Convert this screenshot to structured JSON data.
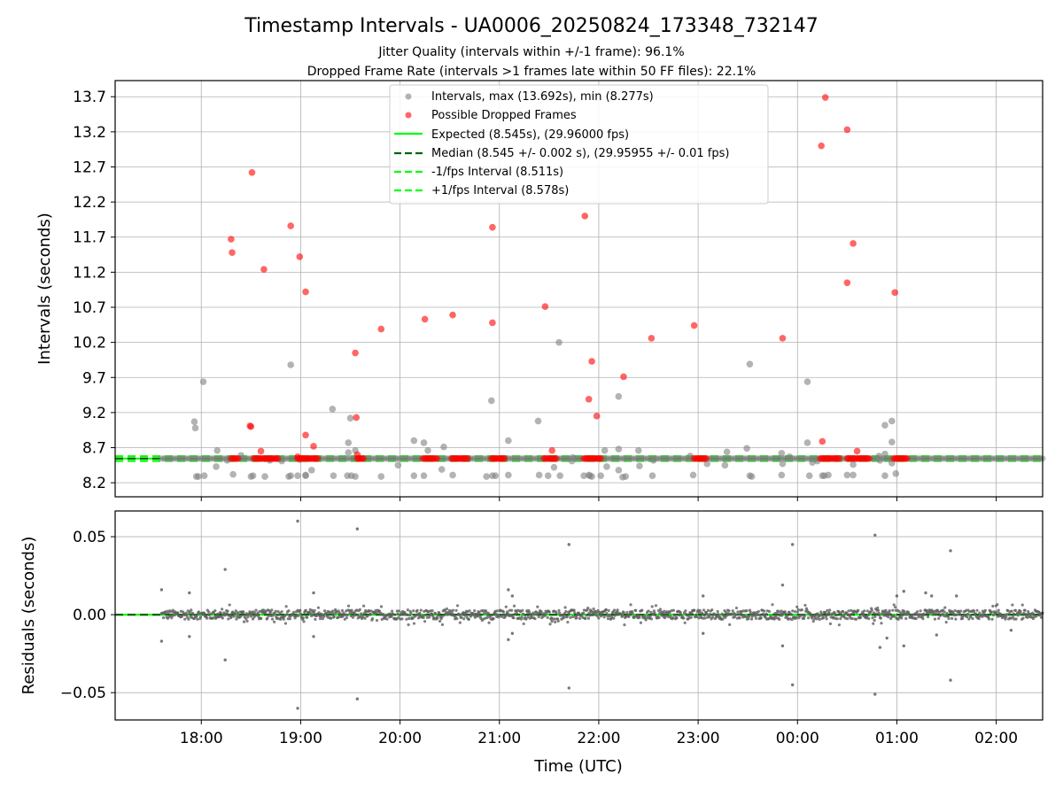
{
  "chart_data": [
    {
      "type": "scatter",
      "title": "Timestamp Intervals - UA0006_20250824_173348_732147",
      "subtitle_lines": [
        "Jitter Quality (intervals within +/-1 frame): 96.1%",
        "Dropped Frame Rate (intervals >1 frames late within 50 FF files): 22.1%"
      ],
      "xlabel": "",
      "ylabel": "Intervals (seconds)",
      "x_unit": "hours since 00:00 UTC (2025-08-24); values > 24 are after midnight",
      "xlim": [
        17.133,
        26.467
      ],
      "ylim": [
        8.0,
        13.93
      ],
      "y_ticks": [
        8.2,
        8.7,
        9.2,
        9.7,
        10.2,
        10.7,
        11.2,
        11.7,
        12.2,
        12.7,
        13.2,
        13.7
      ],
      "y_tick_labels": [
        "8.2",
        "8.7",
        "9.2",
        "9.7",
        "10.2",
        "10.7",
        "11.2",
        "11.7",
        "12.2",
        "12.7",
        "13.2",
        "13.7"
      ],
      "grid": true,
      "legend_position": "top-center",
      "legend": [
        "Intervals, max (13.692s), min (8.277s)",
        "Possible Dropped Frames",
        "Expected (8.545s), (29.96000 fps)",
        "Median (8.545 +/- 0.002 s), (29.95955 +/- 0.01 fps)",
        "-1/fps Interval (8.511s)",
        "+1/fps Interval (8.578s)"
      ],
      "lines": [
        {
          "name": "Expected",
          "y": 8.545,
          "color": "#00ff00",
          "style": "solid"
        },
        {
          "name": "Median",
          "y": 8.545,
          "color": "#006400",
          "style": "dashed"
        },
        {
          "name": "-1/fps Interval",
          "y": 8.511,
          "color": "#00ff00",
          "style": "dashed"
        },
        {
          "name": "+1/fps Interval",
          "y": 8.578,
          "color": "#00ff00",
          "style": "dashed"
        }
      ],
      "series": [
        {
          "name": "Intervals",
          "color": "#808080",
          "points": [
            [
              17.93,
              9.07
            ],
            [
              17.94,
              8.98
            ],
            [
              17.95,
              8.29
            ],
            [
              17.97,
              8.29
            ],
            [
              18.02,
              9.64
            ],
            [
              18.03,
              8.3
            ],
            [
              18.15,
              8.43
            ],
            [
              18.16,
              8.66
            ],
            [
              18.26,
              8.52
            ],
            [
              18.32,
              8.32
            ],
            [
              18.4,
              8.59
            ],
            [
              18.5,
              8.29
            ],
            [
              18.52,
              8.3
            ],
            [
              18.64,
              8.29
            ],
            [
              18.69,
              8.52
            ],
            [
              18.81,
              8.51
            ],
            [
              18.88,
              8.29
            ],
            [
              18.9,
              9.88
            ],
            [
              18.9,
              8.3
            ],
            [
              18.97,
              8.3
            ],
            [
              18.99,
              8.53
            ],
            [
              19.05,
              8.3
            ],
            [
              19.05,
              8.31
            ],
            [
              19.11,
              8.38
            ],
            [
              19.32,
              9.25
            ],
            [
              19.33,
              8.3
            ],
            [
              19.47,
              8.3
            ],
            [
              19.48,
              8.77
            ],
            [
              19.48,
              8.63
            ],
            [
              19.5,
              9.12
            ],
            [
              19.51,
              8.3
            ],
            [
              19.55,
              8.66
            ],
            [
              19.55,
              8.29
            ],
            [
              19.81,
              8.29
            ],
            [
              19.98,
              8.45
            ],
            [
              20.14,
              8.8
            ],
            [
              20.14,
              8.3
            ],
            [
              20.24,
              8.77
            ],
            [
              20.24,
              8.3
            ],
            [
              20.28,
              8.66
            ],
            [
              20.42,
              8.39
            ],
            [
              20.44,
              8.71
            ],
            [
              20.53,
              8.31
            ],
            [
              20.87,
              8.29
            ],
            [
              20.92,
              9.37
            ],
            [
              20.93,
              8.3
            ],
            [
              20.96,
              8.3
            ],
            [
              21.09,
              8.8
            ],
            [
              21.09,
              8.31
            ],
            [
              21.39,
              9.08
            ],
            [
              21.4,
              8.31
            ],
            [
              21.49,
              8.3
            ],
            [
              21.55,
              8.42
            ],
            [
              21.6,
              10.2
            ],
            [
              21.61,
              8.3
            ],
            [
              21.73,
              8.51
            ],
            [
              21.74,
              8.56
            ],
            [
              21.85,
              8.3
            ],
            [
              21.9,
              8.31
            ],
            [
              21.91,
              8.3
            ],
            [
              21.93,
              8.29
            ],
            [
              22.02,
              8.3
            ],
            [
              22.06,
              8.66
            ],
            [
              22.08,
              8.43
            ],
            [
              22.2,
              8.68
            ],
            [
              22.2,
              9.43
            ],
            [
              22.2,
              8.38
            ],
            [
              22.24,
              8.28
            ],
            [
              22.27,
              8.29
            ],
            [
              22.4,
              8.66
            ],
            [
              22.41,
              8.44
            ],
            [
              22.54,
              8.3
            ],
            [
              22.92,
              8.58
            ],
            [
              22.95,
              8.31
            ],
            [
              23.09,
              8.47
            ],
            [
              23.27,
              8.45
            ],
            [
              23.29,
              8.64
            ],
            [
              23.49,
              8.69
            ],
            [
              23.52,
              8.3
            ],
            [
              23.52,
              9.89
            ],
            [
              23.54,
              8.29
            ],
            [
              23.84,
              8.62
            ],
            [
              23.84,
              8.31
            ],
            [
              23.85,
              8.47
            ],
            [
              23.92,
              8.57
            ],
            [
              24.1,
              9.64
            ],
            [
              24.1,
              8.77
            ],
            [
              24.12,
              8.3
            ],
            [
              24.15,
              8.49
            ],
            [
              24.25,
              8.3
            ],
            [
              24.27,
              8.3
            ],
            [
              24.31,
              8.31
            ],
            [
              24.5,
              8.31
            ],
            [
              24.56,
              8.31
            ],
            [
              24.56,
              8.46
            ],
            [
              24.82,
              8.58
            ],
            [
              24.83,
              8.52
            ],
            [
              24.88,
              8.61
            ],
            [
              24.88,
              9.02
            ],
            [
              24.88,
              8.3
            ],
            [
              24.95,
              8.48
            ],
            [
              24.95,
              8.78
            ],
            [
              24.95,
              9.08
            ],
            [
              24.99,
              8.33
            ],
            [
              24.2,
              8.51
            ],
            [
              22.55,
              8.52
            ]
          ]
        },
        {
          "name": "Possible Dropped Frames",
          "color": "#ff0000",
          "points": [
            [
              18.3,
              11.67
            ],
            [
              18.31,
              11.48
            ],
            [
              18.49,
              9.01
            ],
            [
              18.5,
              9.0
            ],
            [
              18.51,
              12.62
            ],
            [
              18.6,
              8.65
            ],
            [
              18.63,
              11.24
            ],
            [
              18.9,
              11.86
            ],
            [
              18.97,
              8.57
            ],
            [
              18.99,
              11.42
            ],
            [
              19.05,
              10.92
            ],
            [
              19.05,
              8.88
            ],
            [
              19.13,
              8.72
            ],
            [
              19.55,
              10.05
            ],
            [
              19.56,
              9.13
            ],
            [
              19.57,
              8.6
            ],
            [
              19.81,
              10.39
            ],
            [
              20.25,
              10.53
            ],
            [
              20.53,
              10.59
            ],
            [
              20.93,
              11.84
            ],
            [
              20.93,
              10.48
            ],
            [
              21.46,
              10.71
            ],
            [
              21.53,
              8.66
            ],
            [
              21.86,
              12.0
            ],
            [
              21.9,
              9.39
            ],
            [
              21.93,
              9.93
            ],
            [
              21.98,
              9.15
            ],
            [
              22.25,
              9.71
            ],
            [
              22.53,
              10.26
            ],
            [
              22.96,
              10.44
            ],
            [
              23.85,
              10.26
            ],
            [
              24.24,
              13.0
            ],
            [
              24.25,
              8.79
            ],
            [
              24.28,
              13.69
            ],
            [
              24.5,
              13.23
            ],
            [
              24.5,
              11.05
            ],
            [
              24.56,
              11.61
            ],
            [
              24.6,
              8.65
            ],
            [
              24.98,
              10.91
            ]
          ],
          "clusters_at_8_545": [
            [
              18.3,
              18.37
            ],
            [
              18.53,
              18.77
            ],
            [
              18.97,
              19.17
            ],
            [
              19.57,
              19.63
            ],
            [
              20.23,
              20.37
            ],
            [
              20.52,
              20.68
            ],
            [
              20.92,
              21.05
            ],
            [
              21.45,
              21.57
            ],
            [
              21.85,
              22.02
            ],
            [
              22.96,
              23.08
            ],
            [
              24.23,
              24.42
            ],
            [
              24.5,
              24.72
            ],
            [
              24.97,
              25.1
            ]
          ]
        }
      ]
    },
    {
      "type": "scatter",
      "title": "",
      "xlabel": "Time (UTC)",
      "ylabel": "Residuals (seconds)",
      "xlim": [
        17.133,
        26.467
      ],
      "ylim": [
        -0.0675,
        0.0665
      ],
      "y_ticks": [
        0.05,
        0.0,
        -0.05
      ],
      "y_tick_labels": [
        "0.05",
        "0.00",
        "−0.05"
      ],
      "x_ticks": [
        18,
        19,
        20,
        21,
        22,
        23,
        24,
        25,
        26
      ],
      "x_tick_labels": [
        "18:00",
        "19:00",
        "20:00",
        "21:00",
        "22:00",
        "23:00",
        "00:00",
        "01:00",
        "02:00"
      ],
      "grid": true,
      "lines": [
        {
          "name": "Zero residual",
          "y": 0.0,
          "color": "#00ff00",
          "style": "solid"
        },
        {
          "name": "Median",
          "y": 0.0,
          "color": "#006400",
          "style": "dashed"
        }
      ],
      "series": [
        {
          "name": "Residuals",
          "color": "#808080",
          "x_range": [
            17.6,
            26.467
          ],
          "typical_amplitude": 0.003,
          "outliers": [
            [
              17.6,
              0.016
            ],
            [
              17.6,
              -0.017
            ],
            [
              17.88,
              0.014
            ],
            [
              17.88,
              -0.014
            ],
            [
              18.24,
              0.029
            ],
            [
              18.24,
              -0.029
            ],
            [
              18.97,
              0.06
            ],
            [
              18.97,
              -0.06
            ],
            [
              19.13,
              0.014
            ],
            [
              19.13,
              -0.014
            ],
            [
              19.57,
              0.055
            ],
            [
              19.57,
              -0.054
            ],
            [
              21.09,
              0.016
            ],
            [
              21.09,
              -0.016
            ],
            [
              21.13,
              0.012
            ],
            [
              21.13,
              -0.012
            ],
            [
              21.7,
              0.045
            ],
            [
              21.7,
              -0.047
            ],
            [
              23.05,
              -0.012
            ],
            [
              23.05,
              0.012
            ],
            [
              23.85,
              0.019
            ],
            [
              23.85,
              -0.02
            ],
            [
              23.95,
              0.045
            ],
            [
              23.95,
              -0.045
            ],
            [
              24.78,
              0.051
            ],
            [
              24.78,
              -0.051
            ],
            [
              24.83,
              -0.021
            ],
            [
              25.07,
              0.015
            ],
            [
              25.07,
              -0.02
            ],
            [
              25.29,
              0.014
            ],
            [
              25.54,
              0.041
            ],
            [
              25.54,
              -0.042
            ],
            [
              24.9,
              -0.015
            ],
            [
              25.0,
              0.012
            ],
            [
              25.35,
              0.012
            ],
            [
              25.4,
              -0.013
            ],
            [
              25.6,
              0.012
            ],
            [
              26.15,
              -0.01
            ]
          ]
        }
      ]
    }
  ]
}
